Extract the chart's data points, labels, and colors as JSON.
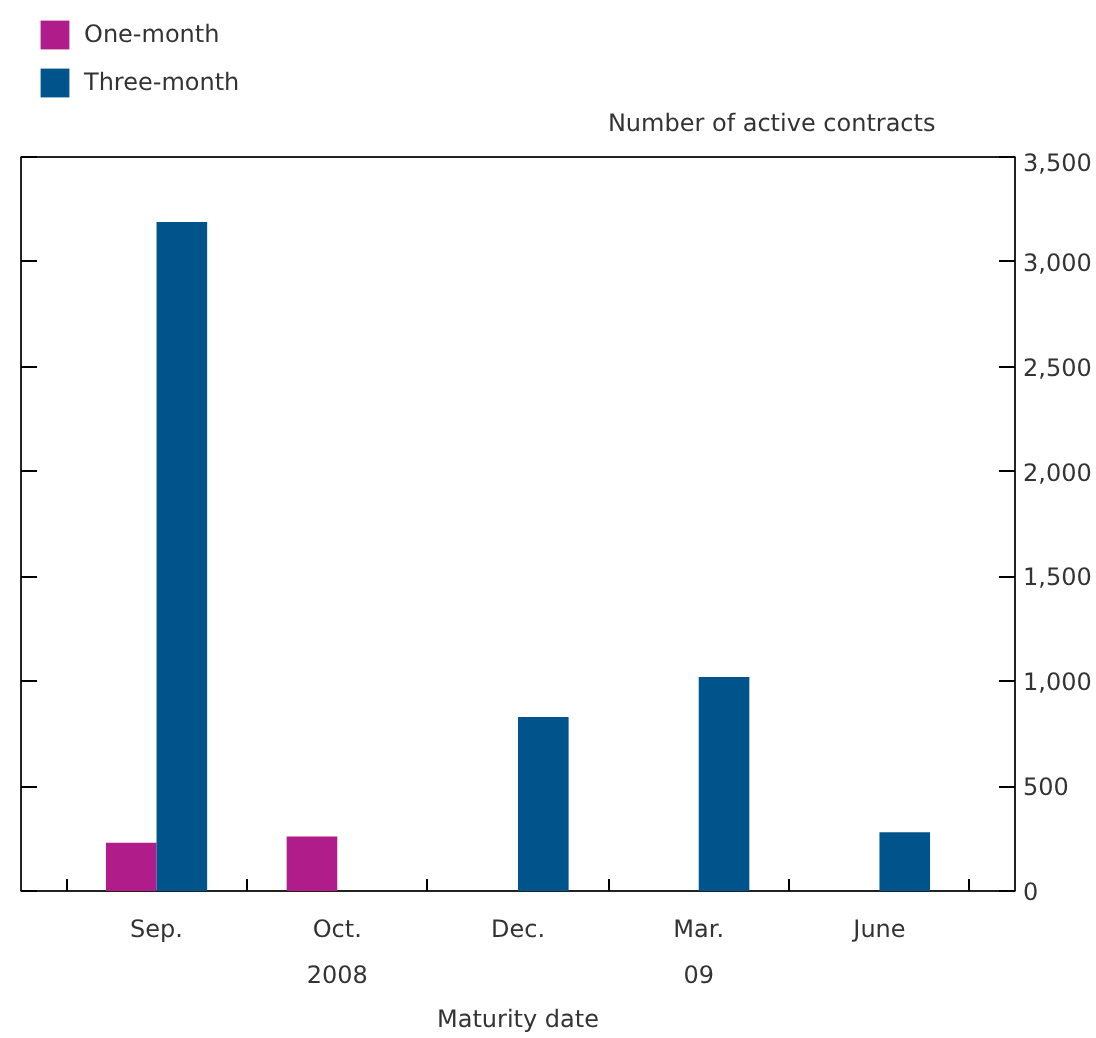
{
  "chart_data": {
    "type": "bar",
    "xlabel": "Maturity date",
    "ylabel": "Number of active contracts",
    "categories": [
      "Sep.",
      "Oct.",
      "Dec.",
      "Mar.",
      "June"
    ],
    "series": [
      {
        "name": "One-month",
        "color": "#b01c8a",
        "values": [
          230,
          260,
          null,
          null,
          null
        ]
      },
      {
        "name": "Three-month",
        "color": "#00548c",
        "values": [
          3190,
          null,
          830,
          1020,
          280
        ]
      }
    ],
    "ylim": [
      0,
      3500
    ],
    "yticks": [
      0,
      {
        "value": 500,
        "label": "500"
      },
      {
        "value": 1000,
        "label": "1,000"
      },
      {
        "value": 1500,
        "label": "1,500"
      },
      {
        "value": 2000,
        "label": "2,000"
      },
      {
        "value": 2500,
        "label": "2,500"
      },
      {
        "value": 3000,
        "label": "3,000"
      },
      {
        "value": 3500,
        "label": "3,500"
      }
    ],
    "annotations": [
      "2008",
      "09"
    ],
    "legend": "top left",
    "grid": false
  }
}
